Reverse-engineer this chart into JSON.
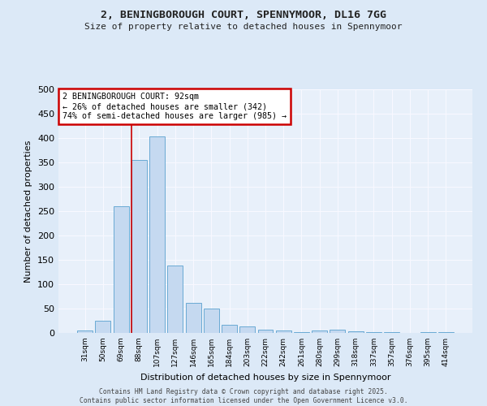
{
  "title_line1": "2, BENINGBOROUGH COURT, SPENNYMOOR, DL16 7GG",
  "title_line2": "Size of property relative to detached houses in Spennymoor",
  "xlabel": "Distribution of detached houses by size in Spennymoor",
  "ylabel": "Number of detached properties",
  "categories": [
    "31sqm",
    "50sqm",
    "69sqm",
    "88sqm",
    "107sqm",
    "127sqm",
    "146sqm",
    "165sqm",
    "184sqm",
    "203sqm",
    "222sqm",
    "242sqm",
    "261sqm",
    "280sqm",
    "299sqm",
    "318sqm",
    "337sqm",
    "357sqm",
    "376sqm",
    "395sqm",
    "414sqm"
  ],
  "values": [
    5,
    25,
    260,
    355,
    403,
    138,
    62,
    50,
    16,
    14,
    6,
    5,
    2,
    5,
    6,
    4,
    1,
    1,
    0,
    2,
    2
  ],
  "bar_color": "#c5d9f0",
  "bar_edgecolor": "#6aaad4",
  "background_color": "#dce9f7",
  "plot_bg_color": "#e8f0fa",
  "grid_color": "#f8f8ff",
  "annotation_box_color": "#cc0000",
  "annotation_line1": "2 BENINGBOROUGH COURT: 92sqm",
  "annotation_line2": "← 26% of detached houses are smaller (342)",
  "annotation_line3": "74% of semi-detached houses are larger (985) →",
  "vline_color": "#cc0000",
  "vline_x_index": 3,
  "ylim": [
    0,
    500
  ],
  "yticks": [
    0,
    50,
    100,
    150,
    200,
    250,
    300,
    350,
    400,
    450,
    500
  ],
  "footer_line1": "Contains HM Land Registry data © Crown copyright and database right 2025.",
  "footer_line2": "Contains public sector information licensed under the Open Government Licence v3.0."
}
